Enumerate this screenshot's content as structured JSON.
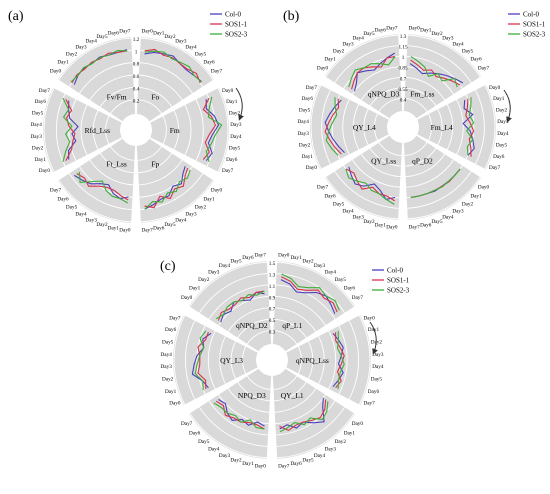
{
  "legend": [
    {
      "name": "Col-0",
      "color": "#4b3fbf"
    },
    {
      "name": "SOS1-1",
      "color": "#d8324a"
    },
    {
      "name": "SOS2-3",
      "color": "#3fae3a"
    }
  ],
  "day_labels": [
    "Day0",
    "Day1",
    "Day2",
    "Day3",
    "Day4",
    "Day5",
    "Day6",
    "Day7"
  ],
  "chart_data": [
    {
      "type": "radar",
      "panel": "(a)",
      "title": "",
      "params": [
        "Fo",
        "Fm",
        "Fp",
        "Ft_Lss",
        "Rfd_Lss",
        "Fv/Fm"
      ],
      "r_ticks": [
        "0.2",
        "0.4",
        "0.6",
        "0.8",
        "1",
        "1.2"
      ],
      "rlim": [
        0.2,
        1.2
      ],
      "series": [
        {
          "name": "Col-0",
          "values": [
            [
              0.95,
              1.0,
              1.02,
              1.05,
              1.0,
              0.98,
              1.0,
              1.03
            ],
            [
              0.95,
              0.9,
              1.0,
              1.05,
              0.95,
              0.9,
              1.0,
              0.95
            ],
            [
              0.7,
              0.75,
              0.85,
              0.8,
              0.9,
              0.9,
              0.95,
              1.0
            ],
            [
              0.8,
              0.85,
              0.8,
              0.7,
              0.75,
              0.85,
              0.9,
              0.95
            ],
            [
              0.9,
              0.85,
              0.7,
              0.75,
              0.65,
              0.8,
              0.85,
              0.9
            ],
            [
              0.95,
              1.0,
              1.02,
              1.0,
              1.03,
              1.0,
              1.0,
              1.02
            ]
          ]
        },
        {
          "name": "SOS1-1",
          "values": [
            [
              1.0,
              1.05,
              1.0,
              1.02,
              1.0,
              1.0,
              1.05,
              1.0
            ],
            [
              1.0,
              0.85,
              0.95,
              1.0,
              0.9,
              0.85,
              0.95,
              0.9
            ],
            [
              0.75,
              0.8,
              0.9,
              0.85,
              0.95,
              0.85,
              1.0,
              0.95
            ],
            [
              0.85,
              0.8,
              0.75,
              0.75,
              0.8,
              0.9,
              0.85,
              0.9
            ],
            [
              0.95,
              0.8,
              0.75,
              0.7,
              0.8,
              0.85,
              0.8,
              0.95
            ],
            [
              1.0,
              1.02,
              1.0,
              1.02,
              1.0,
              1.03,
              1.0,
              1.0
            ]
          ]
        },
        {
          "name": "SOS2-3",
          "values": [
            [
              0.98,
              1.02,
              1.05,
              1.0,
              1.02,
              1.05,
              1.0,
              1.02
            ],
            [
              1.05,
              0.95,
              0.9,
              1.1,
              1.0,
              0.95,
              0.9,
              1.0
            ],
            [
              0.8,
              0.85,
              0.8,
              0.9,
              0.85,
              0.95,
              0.9,
              1.0
            ],
            [
              0.9,
              0.85,
              0.85,
              0.8,
              0.7,
              0.8,
              0.95,
              0.85
            ],
            [
              1.0,
              0.9,
              0.8,
              0.85,
              0.75,
              0.9,
              0.85,
              1.0
            ],
            [
              1.02,
              1.0,
              1.03,
              1.0,
              1.02,
              1.0,
              1.03,
              1.0
            ]
          ]
        }
      ]
    },
    {
      "type": "radar",
      "panel": "(b)",
      "title": "",
      "params": [
        "Fm_Lss",
        "Fm_L4",
        "qP_D2",
        "QY_Lss",
        "QY_L4",
        "qNPQ_D3"
      ],
      "r_ticks": [
        "0.4",
        "0.55",
        "0.7",
        "0.85",
        "1",
        "1.15",
        "1.3"
      ],
      "rlim": [
        0.4,
        1.3
      ],
      "series": [
        {
          "name": "Col-0",
          "values": [
            [
              0.9,
              0.85,
              0.8,
              0.85,
              0.9,
              0.95,
              1.0,
              1.05
            ],
            [
              0.95,
              0.9,
              1.0,
              0.85,
              0.95,
              1.0,
              1.05,
              1.0
            ],
            [
              1.0,
              1.0,
              1.0,
              1.0,
              1.01,
              1.0,
              1.0,
              1.0
            ],
            [
              1.0,
              1.05,
              0.95,
              0.9,
              1.0,
              1.05,
              1.0,
              0.95
            ],
            [
              0.9,
              0.95,
              1.0,
              1.05,
              1.1,
              1.05,
              1.0,
              0.95
            ],
            [
              0.85,
              0.9,
              1.0,
              0.95,
              0.9,
              0.95,
              1.0,
              1.05
            ]
          ]
        },
        {
          "name": "SOS1-1",
          "values": [
            [
              0.95,
              0.9,
              0.85,
              0.9,
              0.85,
              0.9,
              0.95,
              1.0
            ],
            [
              1.0,
              0.95,
              0.9,
              0.95,
              1.0,
              0.95,
              1.0,
              1.05
            ],
            [
              1.0,
              1.0,
              1.01,
              1.0,
              1.0,
              1.0,
              1.0,
              1.0
            ],
            [
              1.05,
              1.0,
              1.0,
              0.95,
              1.05,
              1.0,
              0.95,
              1.0
            ],
            [
              0.95,
              1.0,
              1.05,
              1.1,
              1.05,
              1.0,
              0.95,
              1.0
            ],
            [
              0.9,
              0.95,
              1.0,
              1.0,
              0.95,
              0.9,
              1.0,
              1.0
            ]
          ]
        },
        {
          "name": "SOS2-3",
          "values": [
            [
              1.0,
              0.95,
              0.9,
              0.8,
              0.9,
              0.85,
              1.0,
              0.95
            ],
            [
              1.05,
              1.0,
              0.95,
              1.0,
              0.9,
              1.0,
              0.95,
              1.0
            ],
            [
              1.0,
              1.0,
              1.0,
              1.01,
              1.0,
              1.0,
              1.0,
              1.0
            ],
            [
              1.1,
              1.05,
              1.0,
              1.0,
              0.95,
              1.0,
              1.05,
              1.0
            ],
            [
              1.0,
              1.05,
              1.1,
              1.05,
              1.0,
              0.95,
              1.0,
              1.05
            ],
            [
              0.95,
              1.0,
              1.05,
              1.0,
              1.0,
              0.95,
              0.9,
              1.0
            ]
          ]
        }
      ]
    },
    {
      "type": "radar",
      "panel": "(c)",
      "title": "",
      "params": [
        "qP_L1",
        "qNPQ_Lss",
        "QY_L1",
        "NPQ_D3",
        "QY_L3",
        "qNPQ_D2"
      ],
      "r_ticks": [
        "0.3",
        "0.5",
        "0.7",
        "0.9",
        "1.1",
        "1.3",
        "1.5"
      ],
      "rlim": [
        0.3,
        1.5
      ],
      "series": [
        {
          "name": "Col-0",
          "values": [
            [
              1.2,
              1.15,
              1.05,
              1.1,
              1.2,
              1.25,
              1.2,
              1.15
            ],
            [
              0.95,
              1.0,
              1.05,
              1.0,
              0.95,
              1.05,
              1.0,
              0.95
            ],
            [
              0.9,
              1.0,
              1.2,
              1.1,
              1.0,
              1.05,
              0.95,
              1.0
            ],
            [
              0.95,
              0.9,
              1.0,
              0.95,
              1.05,
              1.0,
              0.9,
              0.95
            ],
            [
              1.0,
              1.05,
              1.2,
              1.15,
              1.1,
              1.0,
              1.05,
              0.95
            ],
            [
              0.9,
              0.95,
              0.9,
              1.0,
              0.95,
              0.9,
              1.0,
              0.95
            ]
          ]
        },
        {
          "name": "SOS1-1",
          "values": [
            [
              1.25,
              1.2,
              1.1,
              1.15,
              1.25,
              1.2,
              1.25,
              1.2
            ],
            [
              1.0,
              0.95,
              1.0,
              1.05,
              1.0,
              0.95,
              1.05,
              1.0
            ],
            [
              0.95,
              1.05,
              1.1,
              1.05,
              1.0,
              1.0,
              1.05,
              0.95
            ],
            [
              1.0,
              0.95,
              0.95,
              1.0,
              1.0,
              1.05,
              0.95,
              1.0
            ],
            [
              1.05,
              1.0,
              1.1,
              1.05,
              1.05,
              1.1,
              1.0,
              1.0
            ],
            [
              0.95,
              1.0,
              0.95,
              0.95,
              1.0,
              0.95,
              1.0,
              1.0
            ]
          ]
        },
        {
          "name": "SOS2-3",
          "values": [
            [
              1.3,
              1.25,
              1.15,
              1.2,
              1.3,
              1.25,
              1.3,
              1.25
            ],
            [
              1.05,
              1.0,
              0.95,
              1.0,
              1.05,
              1.0,
              1.0,
              1.05
            ],
            [
              1.0,
              1.1,
              1.15,
              1.0,
              1.05,
              0.95,
              1.0,
              1.05
            ],
            [
              1.0,
              1.0,
              0.9,
              1.0,
              0.95,
              1.0,
              1.0,
              1.05
            ],
            [
              1.1,
              1.05,
              1.15,
              1.1,
              1.05,
              1.0,
              1.1,
              1.05
            ],
            [
              1.0,
              0.95,
              1.0,
              1.0,
              0.95,
              1.0,
              0.95,
              1.0
            ]
          ]
        }
      ]
    }
  ]
}
